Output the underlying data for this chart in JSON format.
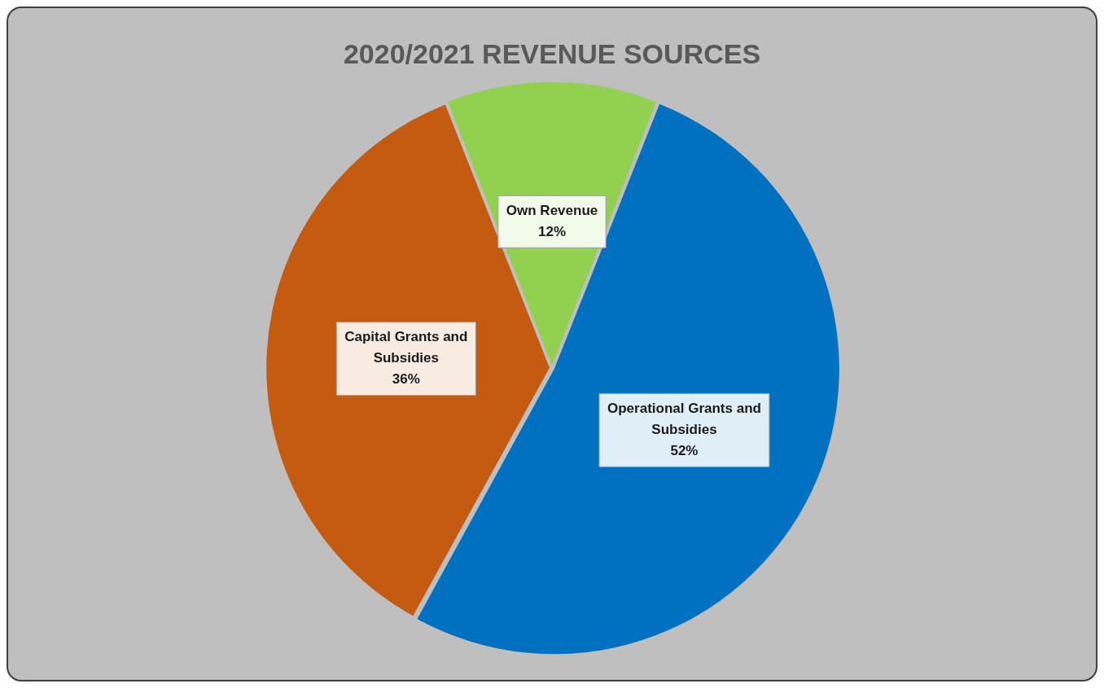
{
  "chart_data": {
    "type": "pie",
    "title": "2020/2021 REVENUE SOURCES",
    "categories": [
      "Own Revenue",
      "Operational Grants and Subsidies",
      "Capital Grants and Subsidies"
    ],
    "values": [
      12,
      52,
      36
    ],
    "value_labels": [
      "12%",
      "52%",
      "36%"
    ],
    "colors": [
      "#92d050",
      "#0070c0",
      "#c55a11"
    ],
    "legend": false
  }
}
